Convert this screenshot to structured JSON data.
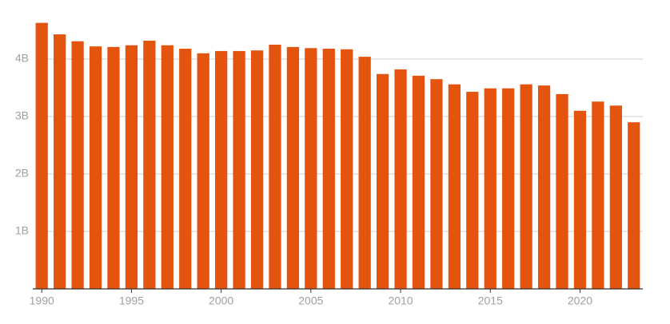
{
  "chart_data": {
    "type": "bar",
    "categories": [
      "1990",
      null,
      null,
      null,
      null,
      "1995",
      null,
      null,
      null,
      null,
      "2000",
      null,
      null,
      null,
      null,
      "2005",
      null,
      null,
      null,
      null,
      "2010",
      null,
      null,
      null,
      null,
      "2015",
      null,
      null,
      null,
      null,
      "2020",
      null,
      null,
      null
    ],
    "values": [
      4.63,
      4.43,
      4.31,
      4.22,
      4.21,
      4.24,
      4.32,
      4.24,
      4.18,
      4.1,
      4.14,
      4.14,
      4.15,
      4.25,
      4.21,
      4.19,
      4.18,
      4.17,
      4.04,
      3.74,
      3.82,
      3.71,
      3.65,
      3.56,
      3.43,
      3.49,
      3.49,
      3.56,
      3.54,
      3.39,
      3.1,
      3.26,
      3.19,
      2.9
    ],
    "color": "#e4540f",
    "ylim": [
      0,
      4.75
    ],
    "yticks": [
      {
        "value": 1,
        "label": "1B"
      },
      {
        "value": 2,
        "label": "2B"
      },
      {
        "value": 3,
        "label": "3B"
      },
      {
        "value": 4,
        "label": "4B"
      }
    ],
    "grid": true
  }
}
